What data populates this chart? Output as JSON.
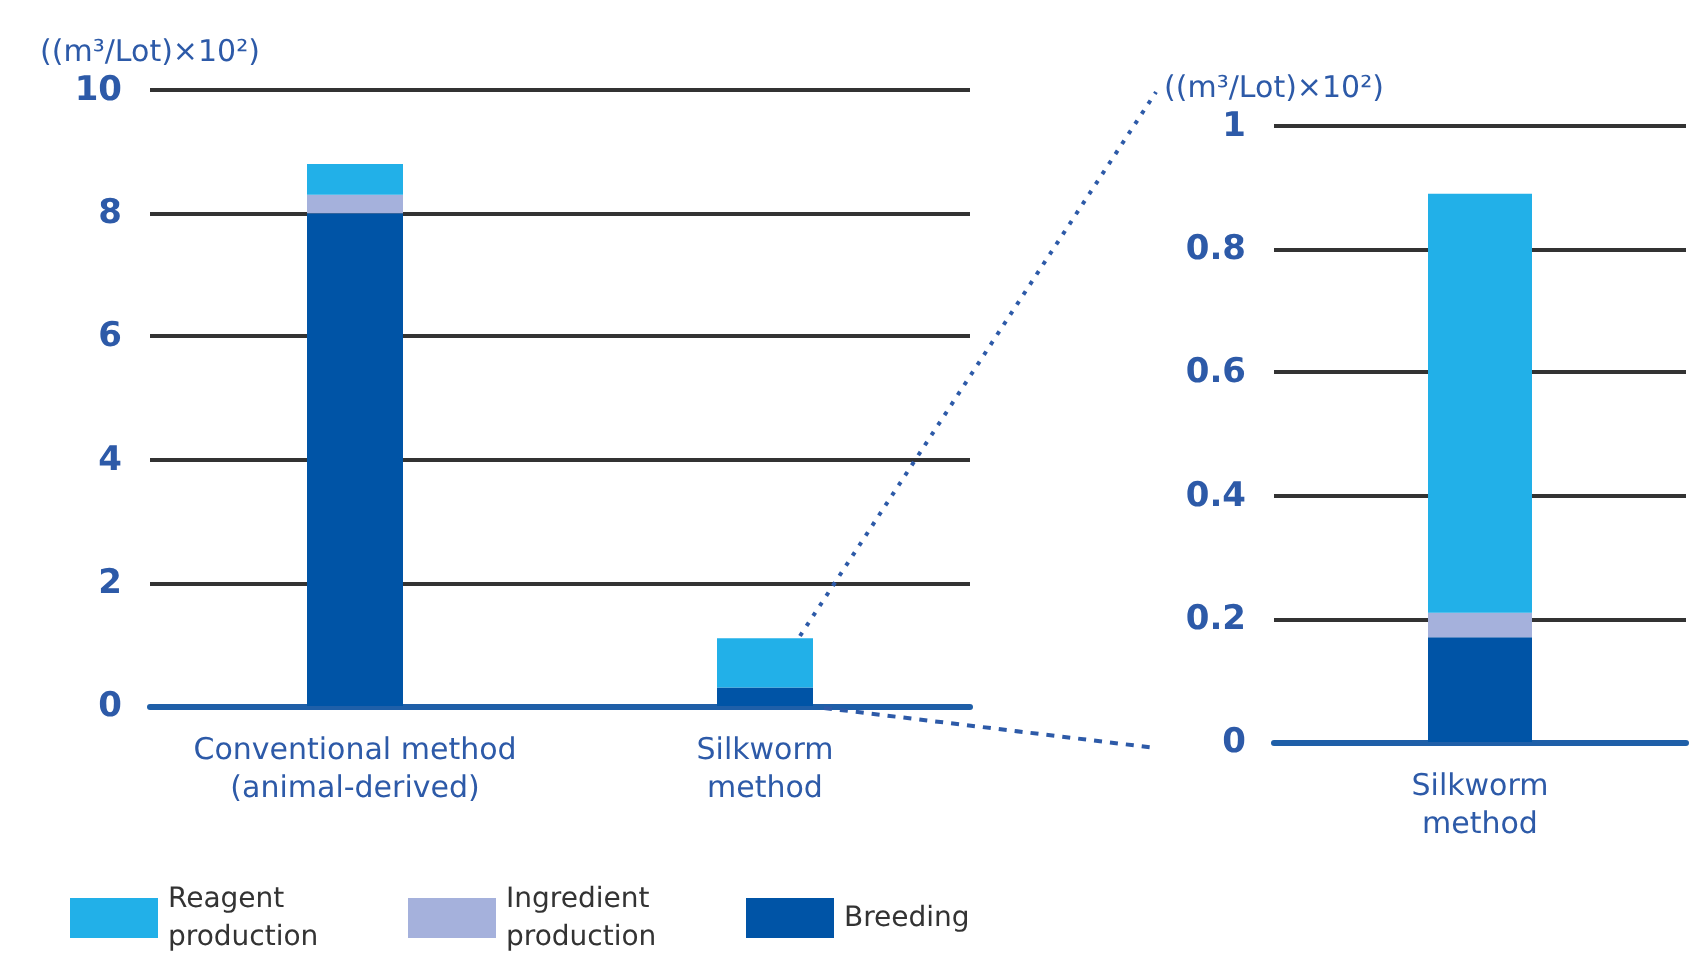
{
  "chart_data": [
    {
      "type": "bar",
      "stacked": true,
      "categories": [
        "Conventional method\n(animal-derived)",
        "Silkworm\nmethod"
      ],
      "ylabel": "((m³/Lot)×10²)",
      "series": [
        {
          "name": "Breeding",
          "color": "#0054a6",
          "values": [
            8.0,
            0.3
          ]
        },
        {
          "name": "Ingredient production",
          "color": "#a5b1dc",
          "values": [
            0.3,
            0
          ]
        },
        {
          "name": "Reagent production",
          "color": "#22b0e8",
          "values": [
            0.5,
            0.8
          ]
        }
      ],
      "ylim": [
        0,
        10
      ],
      "yticks": [
        0,
        2,
        4,
        6,
        8,
        10
      ],
      "grid": "y",
      "legend": "bottom"
    },
    {
      "type": "bar",
      "stacked": true,
      "categories": [
        "Silkworm\nmethod"
      ],
      "ylabel": "((m³/Lot)×10²)",
      "series": [
        {
          "color": "#0054a6",
          "values": [
            0.17
          ]
        },
        {
          "color": "#a5b1dc",
          "values": [
            0.04
          ]
        },
        {
          "color": "#22b0e8",
          "values": [
            0.68
          ]
        }
      ],
      "ylim": [
        0,
        1
      ],
      "yticks": [
        0,
        0.2,
        0.4,
        0.6,
        0.8,
        1
      ],
      "grid": "y"
    }
  ]
}
